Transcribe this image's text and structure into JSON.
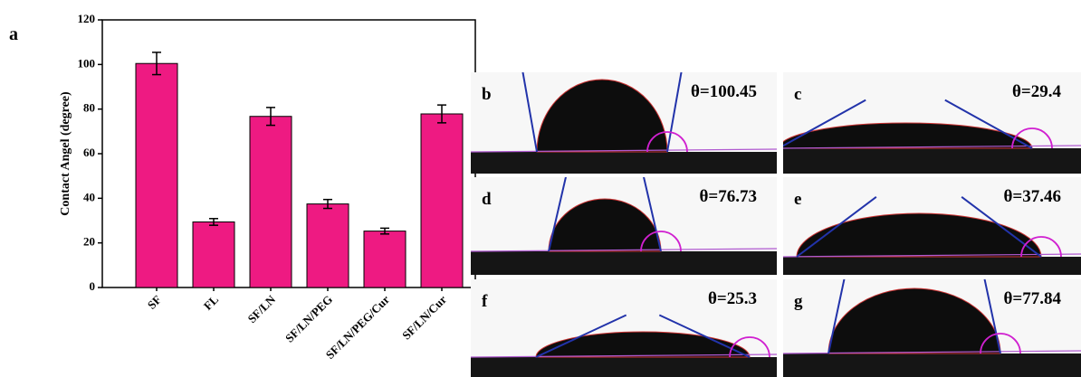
{
  "chart_data": {
    "type": "bar",
    "panel_label": "a",
    "ylabel": "Contact Angel (degree)",
    "categories": [
      "SF",
      "FL",
      "SF/LN",
      "SF/LN/PEG",
      "SF/LN/PEG/Cur",
      "SF/LN/Cur"
    ],
    "values": [
      100.45,
      29.4,
      76.73,
      37.46,
      25.3,
      77.84
    ],
    "errors": [
      5,
      1.5,
      4,
      2,
      1.3,
      4
    ],
    "color": "#ee1a82",
    "ylim": [
      0,
      120
    ],
    "yticks": [
      0,
      20,
      40,
      60,
      80,
      100,
      120
    ]
  },
  "photos": [
    {
      "label": "b",
      "angle": "θ=100.45"
    },
    {
      "label": "c",
      "angle": "θ=29.4"
    },
    {
      "label": "d",
      "angle": "θ=76.73"
    },
    {
      "label": "e",
      "angle": "θ=37.46"
    },
    {
      "label": "f",
      "angle": "θ=25.3"
    },
    {
      "label": "g",
      "angle": "θ=77.84"
    }
  ]
}
